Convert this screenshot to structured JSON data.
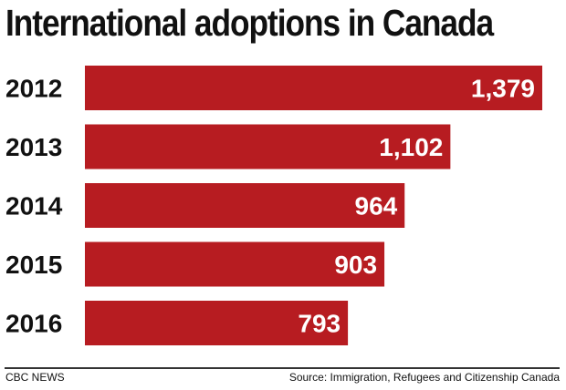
{
  "chart_data": {
    "type": "bar",
    "orientation": "horizontal",
    "title": "International adoptions in Canada",
    "categories": [
      "2012",
      "2013",
      "2014",
      "2015",
      "2016"
    ],
    "values": [
      1379,
      1102,
      964,
      903,
      793
    ],
    "data_labels": [
      "1,379",
      "1,102",
      "964",
      "903",
      "793"
    ],
    "xlim": [
      0,
      1379
    ],
    "grid": false,
    "bar_color": "#b71c21",
    "label_color": "#ffffff"
  },
  "footer": {
    "brand": "CBC NEWS",
    "source": "Source: Immigration, Refugees and Citizenship Canada"
  }
}
